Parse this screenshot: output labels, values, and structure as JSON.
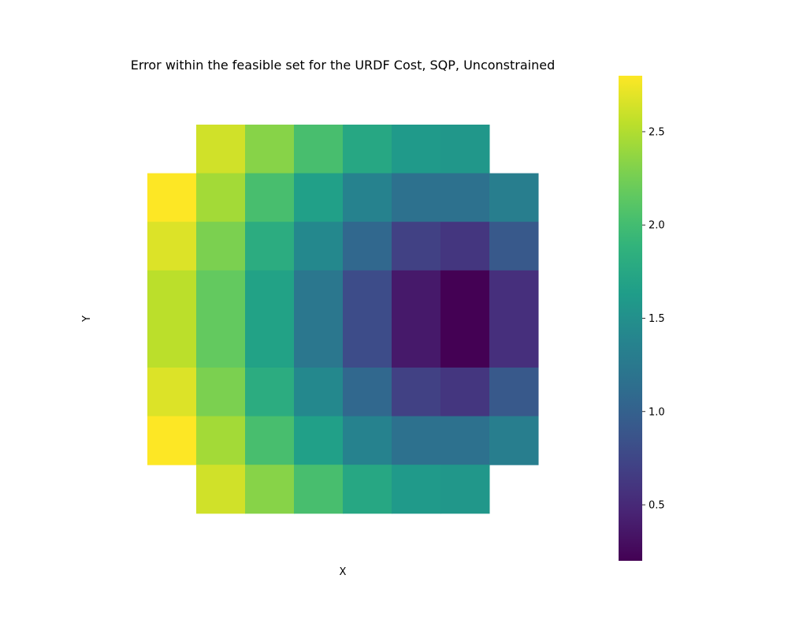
{
  "chart_data": {
    "type": "heatmap",
    "title": "Error within the feasible set for the URDF Cost, SQP, Unconstrained",
    "xlabel": "X",
    "ylabel": "Y",
    "colormap": "viridis",
    "vmin": 0.2,
    "vmax": 2.8,
    "colorbar_ticks": [
      0.5,
      1.0,
      1.5,
      2.0,
      2.5
    ],
    "colorbar_tick_labels": [
      "0.5",
      "1.0",
      "1.5",
      "2.0",
      "2.5"
    ],
    "grid": false,
    "rows": 8,
    "cols": 8,
    "values": [
      [
        null,
        2.62,
        2.33,
        2.03,
        1.75,
        1.6,
        1.57,
        null
      ],
      [
        2.8,
        2.44,
        2.03,
        1.67,
        1.35,
        1.17,
        1.17,
        1.31
      ],
      [
        2.67,
        2.28,
        1.81,
        1.42,
        1.07,
        0.7,
        0.61,
        0.92
      ],
      [
        2.54,
        2.17,
        1.69,
        1.23,
        0.8,
        0.38,
        0.2,
        0.55
      ],
      [
        2.54,
        2.17,
        1.69,
        1.23,
        0.8,
        0.38,
        0.2,
        0.55
      ],
      [
        2.67,
        2.28,
        1.81,
        1.42,
        1.07,
        0.7,
        0.61,
        0.92
      ],
      [
        2.8,
        2.44,
        2.03,
        1.67,
        1.35,
        1.17,
        1.17,
        1.31
      ],
      [
        null,
        2.62,
        2.33,
        2.03,
        1.75,
        1.6,
        1.57,
        null
      ]
    ]
  }
}
